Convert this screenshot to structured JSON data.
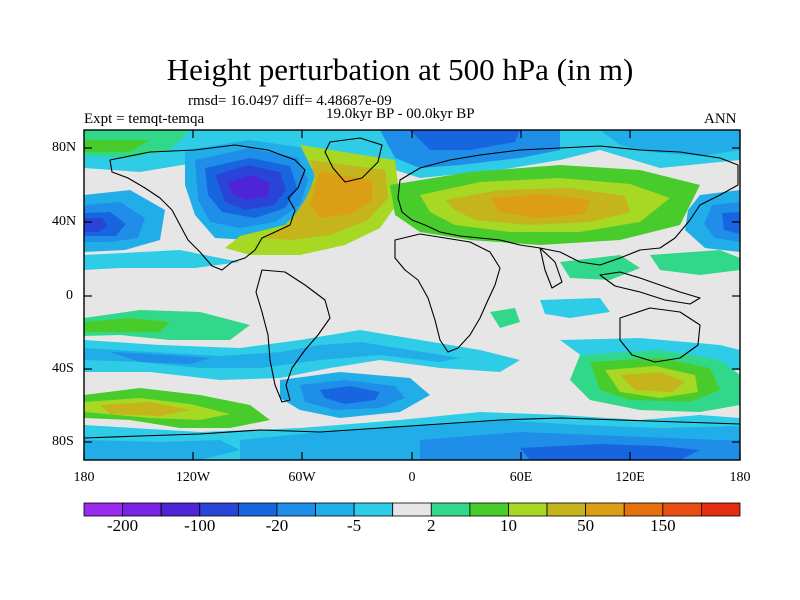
{
  "title": "Height perturbation at 500 hPa (in m)",
  "stats": "rmsd= 16.0497 diff= 4.48687e-09",
  "experiment": "Expt = temqt-temqa",
  "period": "19.0kyr BP - 00.0kyr BP",
  "season": "ANN",
  "map": {
    "lat_ticks": [
      "80N",
      "40N",
      "0",
      "40S",
      "80S"
    ],
    "lon_ticks": [
      "180",
      "120W",
      "60W",
      "0",
      "60E",
      "120E",
      "180"
    ]
  },
  "colorbar": {
    "colors": [
      "#9a2cf0",
      "#7a22e4",
      "#4d25d6",
      "#2a44d8",
      "#1766e0",
      "#1f8ee8",
      "#21aee8",
      "#2ecce6",
      "#e6e6e6",
      "#32d88a",
      "#48cc2c",
      "#a6d824",
      "#c6b41c",
      "#dc9e14",
      "#e4700e",
      "#e84e12",
      "#e42c10"
    ],
    "labels": [
      {
        "text": "-200",
        "boundary": 1
      },
      {
        "text": "-100",
        "boundary": 3
      },
      {
        "text": "-20",
        "boundary": 5
      },
      {
        "text": "-5",
        "boundary": 7
      },
      {
        "text": "2",
        "boundary": 9
      },
      {
        "text": "10",
        "boundary": 11
      },
      {
        "text": "50",
        "boundary": 13
      },
      {
        "text": "150",
        "boundary": 15
      }
    ]
  }
}
